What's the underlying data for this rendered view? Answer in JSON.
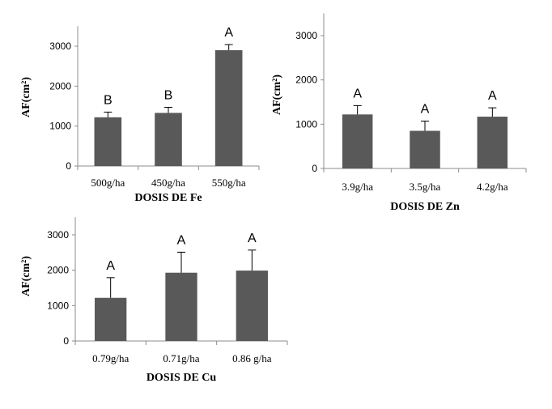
{
  "chart_data": [
    {
      "type": "bar",
      "categories": [
        "500g/ha",
        "450g/ha",
        "550g/ha"
      ],
      "values": [
        1220,
        1330,
        2900
      ],
      "errors": [
        130,
        140,
        140
      ],
      "significance": [
        "B",
        "B",
        "A"
      ],
      "xlabel": "DOSIS DE Fe",
      "ylabel": "AF(cm²)",
      "ylim": [
        0,
        3500
      ],
      "yticks": [
        0,
        1000,
        2000,
        3000
      ],
      "grid": false,
      "bar_color": "#595959"
    },
    {
      "type": "bar",
      "categories": [
        "3.9g/ha",
        "3.5g/ha",
        "4.2g/ha"
      ],
      "values": [
        1220,
        850,
        1170
      ],
      "errors": [
        200,
        220,
        200
      ],
      "significance": [
        "A",
        "A",
        "A"
      ],
      "xlabel": "DOSIS DE Zn",
      "ylabel": "AF(cm²)",
      "ylim": [
        0,
        3500
      ],
      "yticks": [
        0,
        1000,
        2000,
        3000
      ],
      "grid": false,
      "bar_color": "#595959"
    },
    {
      "type": "bar",
      "categories": [
        "0.79g/ha",
        "0.71g/ha",
        "0.86 g/ha"
      ],
      "values": [
        1220,
        1930,
        1990
      ],
      "errors": [
        570,
        580,
        580
      ],
      "significance": [
        "A",
        "A",
        "A"
      ],
      "xlabel": "DOSIS DE Cu",
      "ylabel": "AF(cm²)",
      "ylim": [
        0,
        3500
      ],
      "yticks": [
        0,
        1000,
        2000,
        3000
      ],
      "grid": false,
      "bar_color": "#595959"
    }
  ]
}
